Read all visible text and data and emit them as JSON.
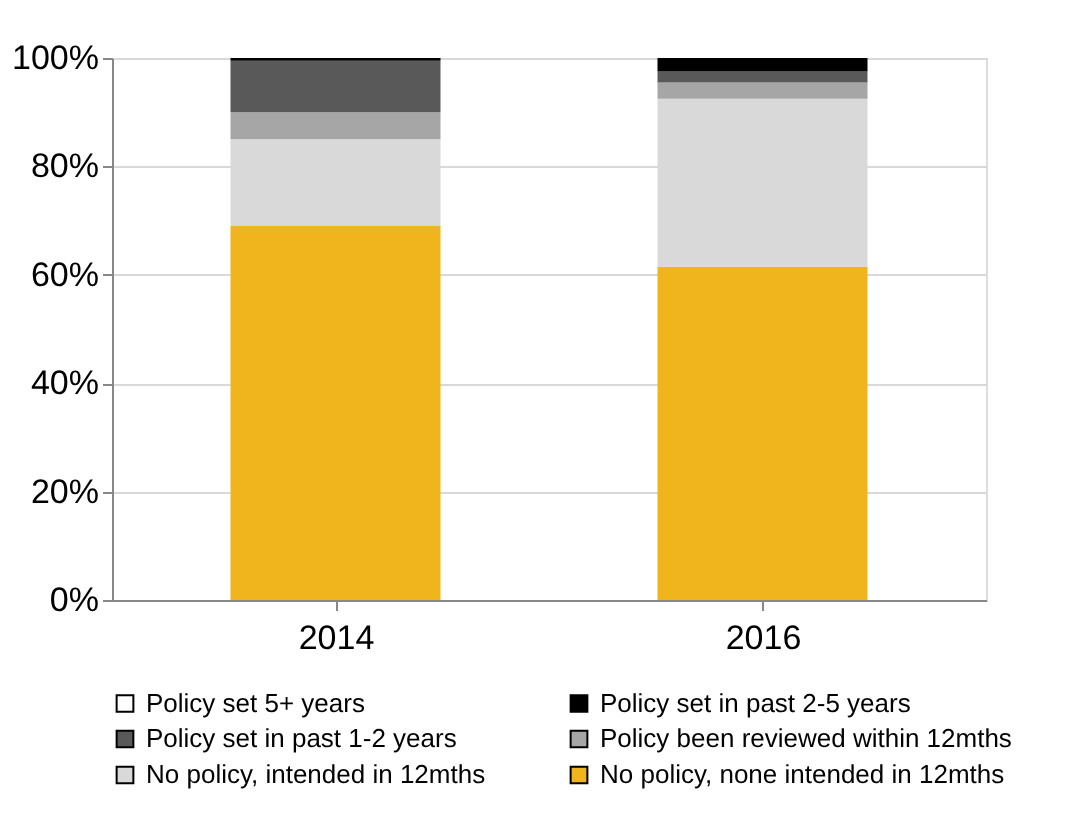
{
  "chart_data": {
    "type": "bar",
    "stacked": true,
    "categories": [
      "2014",
      "2016"
    ],
    "series": [
      {
        "name": "No policy, none intended in 12mths",
        "color": "#f0b41c",
        "values": [
          69,
          61.5
        ]
      },
      {
        "name": "No policy, intended in 12mths",
        "color": "#d9d9d9",
        "values": [
          16,
          31
        ]
      },
      {
        "name": "Policy been reviewed within 12mths",
        "color": "#a6a6a6",
        "values": [
          5,
          3
        ]
      },
      {
        "name": "Policy set in  past 1-2 years",
        "color": "#595959",
        "values": [
          9.5,
          2
        ]
      },
      {
        "name": "Policy set in past 2-5 years",
        "color": "#000000",
        "values": [
          0.5,
          2.5
        ]
      },
      {
        "name": "Policy set 5+ years",
        "color": "#ffffff",
        "values": [
          0,
          0
        ]
      }
    ],
    "ylim": [
      0,
      100
    ],
    "yticks": [
      {
        "value": 0,
        "label": "0%"
      },
      {
        "value": 20,
        "label": "20%"
      },
      {
        "value": 40,
        "label": "40%"
      },
      {
        "value": 60,
        "label": "60%"
      },
      {
        "value": 80,
        "label": "80%"
      },
      {
        "value": 100,
        "label": "100%"
      }
    ],
    "grid": "y",
    "legend": "bottom"
  }
}
